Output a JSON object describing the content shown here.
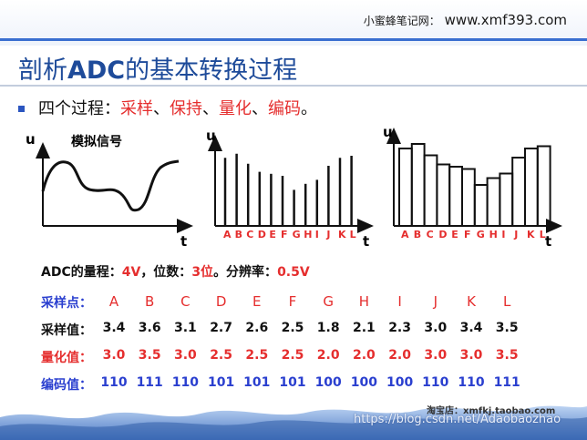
{
  "header": {
    "site_cn": "小蜜蜂笔记网：",
    "site_url": "www.xmf393.com"
  },
  "title": {
    "cn_prefix": "剖析",
    "bold": "ADC",
    "cn_suffix": "的基本转换过程"
  },
  "intro": {
    "lead": "四个过程：",
    "items": [
      "采样",
      "保持",
      "量化",
      "编码"
    ],
    "sep": "、",
    "end": "。"
  },
  "figure": {
    "u_label": "u",
    "t_label": "t",
    "analog_label": "模拟信号",
    "points": [
      "A",
      "B",
      "C",
      "D",
      "E",
      "F",
      "G",
      "H",
      "I",
      "J",
      "K",
      "L"
    ]
  },
  "adc": {
    "range_label": "ADC的量程：",
    "range_value": "4V",
    "bits_label": "，位数：",
    "bits_value": "3位",
    "res_label": "。分辨率：",
    "res_value": "0.5V"
  },
  "table": {
    "points_label": "采样点：",
    "sample_label": "采样值：",
    "quant_label": "量化值：",
    "code_label": "编码值：",
    "points": [
      "A",
      "B",
      "C",
      "D",
      "E",
      "F",
      "G",
      "H",
      "I",
      "J",
      "K",
      "L"
    ],
    "sample_values": [
      "3.4",
      "3.6",
      "3.1",
      "2.7",
      "2.6",
      "2.5",
      "1.8",
      "2.1",
      "2.3",
      "3.0",
      "3.4",
      "3.5"
    ],
    "quant_values": [
      "3.0",
      "3.5",
      "3.0",
      "2.5",
      "2.5",
      "2.5",
      "2.0",
      "2.0",
      "2.0",
      "3.0",
      "3.0",
      "3.5"
    ],
    "code_values": [
      "110",
      "111",
      "110",
      "101",
      "101",
      "101",
      "100",
      "100",
      "100",
      "110",
      "110",
      "111"
    ]
  },
  "footer": {
    "shop": "淘宝店：xmfkj.taobao.com",
    "watermark": "https://blog.csdn.net/Adaobaozhao"
  }
}
